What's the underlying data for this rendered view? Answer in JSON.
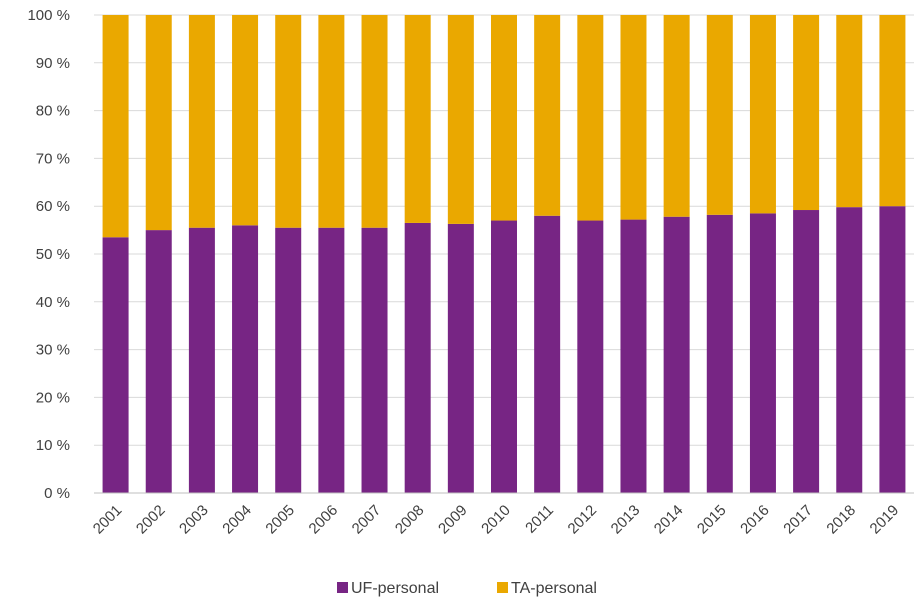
{
  "chart_data": {
    "type": "bar",
    "stacked": true,
    "percent_stacked": true,
    "title": "",
    "xlabel": "",
    "ylabel": "",
    "ylim": [
      0,
      100
    ],
    "y_ticks": [
      0,
      10,
      20,
      30,
      40,
      50,
      60,
      70,
      80,
      90,
      100
    ],
    "y_tick_labels": [
      "0 %",
      "10 %",
      "20 %",
      "30 %",
      "40 %",
      "50 %",
      "60 %",
      "70 %",
      "80 %",
      "90 %",
      "100 %"
    ],
    "grid": "horizontal",
    "legend": "bottom",
    "categories": [
      "2001",
      "2002",
      "2003",
      "2004",
      "2005",
      "2006",
      "2007",
      "2008",
      "2009",
      "2010",
      "2011",
      "2012",
      "2013",
      "2014",
      "2015",
      "2016",
      "2017",
      "2018",
      "2019"
    ],
    "series": [
      {
        "name": "UF-personal",
        "color": "#772584",
        "values": [
          53.5,
          55,
          55.5,
          56,
          55.5,
          55.5,
          55.5,
          56.5,
          56.3,
          57,
          58,
          57,
          57.2,
          57.8,
          58.2,
          58.5,
          59.2,
          59.8,
          60
        ]
      },
      {
        "name": "TA-personal",
        "color": "#EAA800",
        "values": [
          46.5,
          45,
          44.5,
          44,
          44.5,
          44.5,
          44.5,
          43.5,
          43.7,
          43,
          42,
          43,
          42.8,
          42.2,
          41.8,
          41.5,
          40.8,
          40.2,
          40
        ]
      }
    ]
  }
}
